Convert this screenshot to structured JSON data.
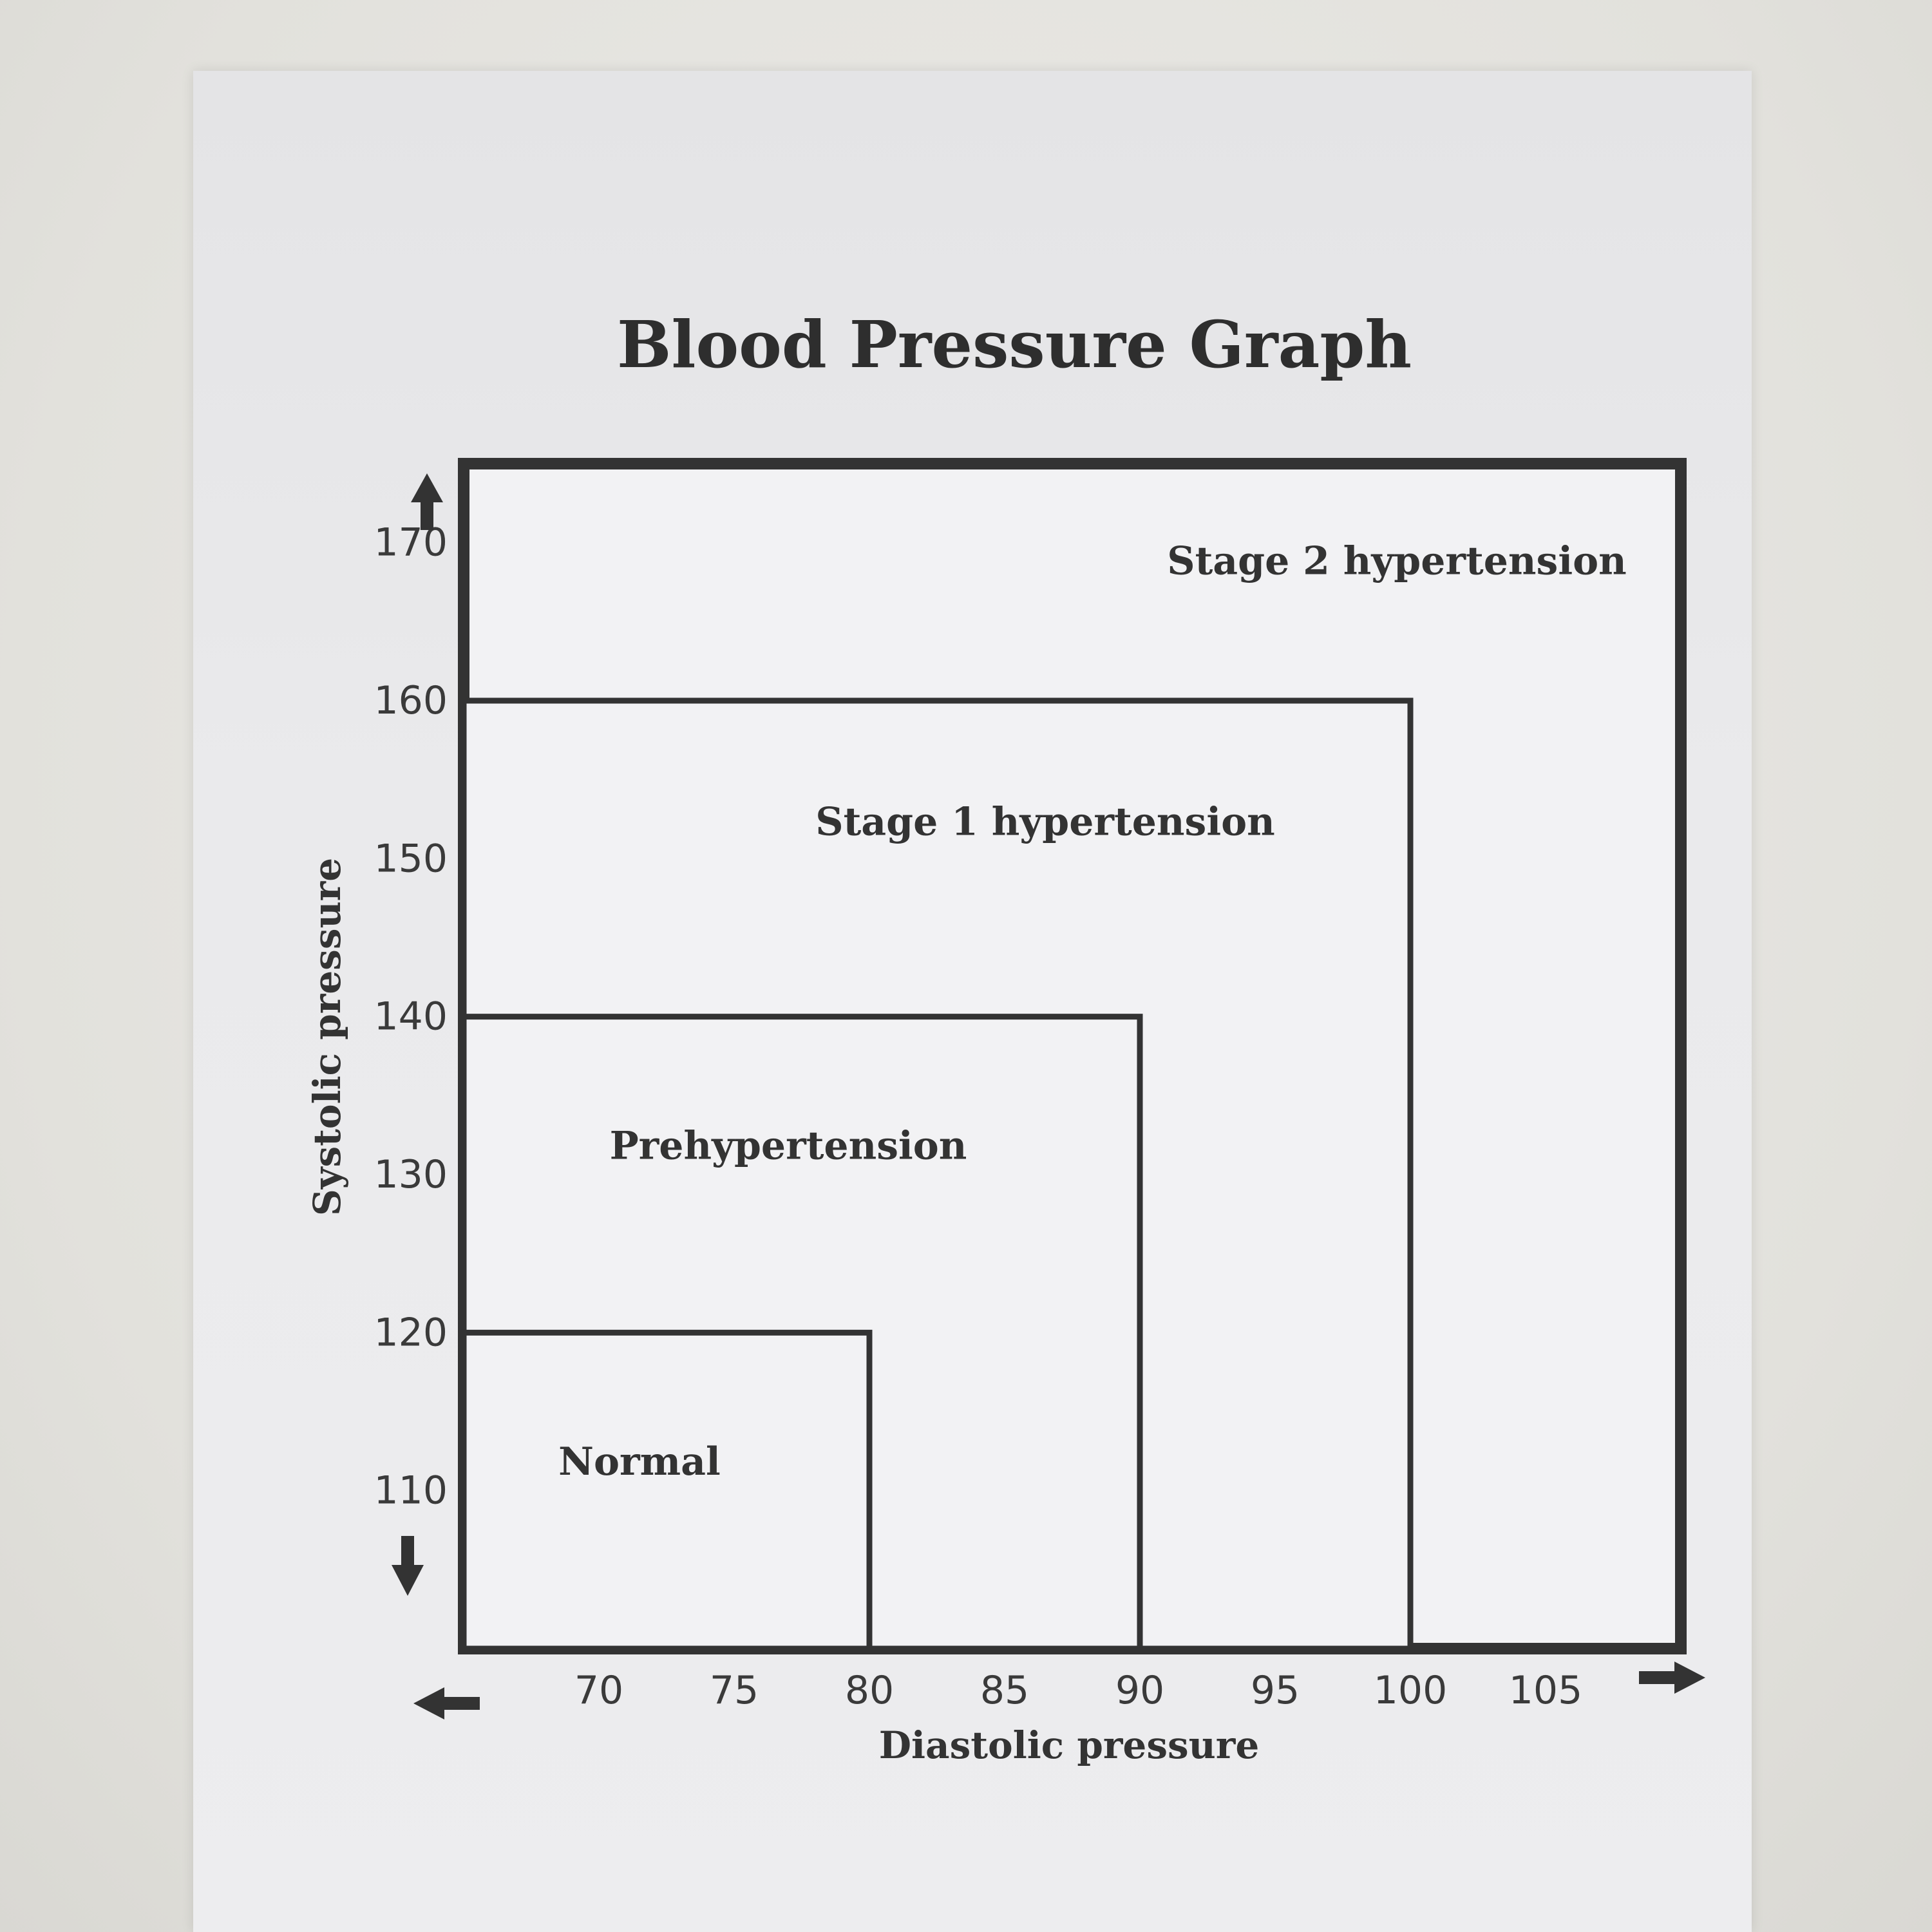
{
  "chart_data": {
    "type": "area",
    "title": "Blood Pressure Graph",
    "xlabel": "Diastolic pressure",
    "ylabel": "Systolic pressure",
    "x_ticks": [
      70,
      75,
      80,
      85,
      90,
      95,
      100,
      105
    ],
    "y_ticks": [
      110,
      120,
      130,
      140,
      150,
      160,
      170
    ],
    "xlim": [
      65,
      110
    ],
    "ylim": [
      100,
      175
    ],
    "zones": [
      {
        "name": "Stage 2 hypertension",
        "x_max": 110,
        "y_max": 175
      },
      {
        "name": "Stage 1 hypertension",
        "x_max": 100,
        "y_max": 160
      },
      {
        "name": "Prehypertension",
        "x_max": 90,
        "y_max": 140
      },
      {
        "name": "Normal",
        "x_max": 80,
        "y_max": 120
      }
    ],
    "grid": false,
    "legend": "none"
  },
  "colors": {
    "frame": "#333333",
    "text": "#333333"
  }
}
